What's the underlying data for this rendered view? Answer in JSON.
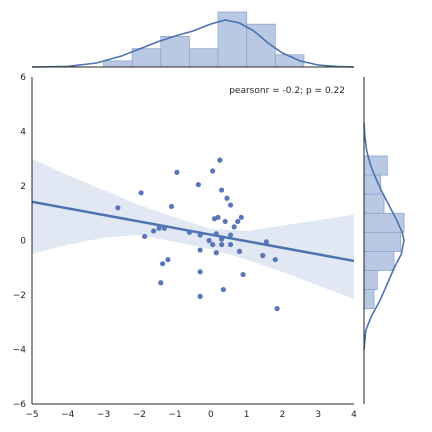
{
  "chart_data": {
    "type": "scatter",
    "title": "",
    "xlabel": "",
    "ylabel": "",
    "xlim": [
      -5,
      4
    ],
    "ylim": [
      -6,
      6
    ],
    "xticks": [
      -5,
      -4,
      -3,
      -2,
      -1,
      0,
      1,
      2,
      3,
      4
    ],
    "yticks": [
      -6,
      -4,
      -2,
      0,
      2,
      4,
      6
    ],
    "grid": false,
    "annotation": "pearsonr = -0.2; p = 0.22",
    "colors": {
      "points": "#5976b8",
      "line": "#4c72b0",
      "band": "#c8d3e9",
      "hist": "#a9bbdc",
      "hist_edge": "#8fa6d0",
      "spine": "#262626"
    },
    "points": [
      [
        -2.6,
        1.2
      ],
      [
        -1.95,
        1.75
      ],
      [
        -1.85,
        0.15
      ],
      [
        -1.6,
        0.35
      ],
      [
        -1.45,
        0.45
      ],
      [
        -1.3,
        0.45
      ],
      [
        -1.1,
        1.25
      ],
      [
        -0.95,
        2.5
      ],
      [
        -1.35,
        -0.85
      ],
      [
        -1.2,
        -0.7
      ],
      [
        -1.4,
        -1.55
      ],
      [
        -0.6,
        0.3
      ],
      [
        -0.35,
        2.05
      ],
      [
        -0.3,
        0.2
      ],
      [
        -0.3,
        -0.35
      ],
      [
        -0.3,
        -1.15
      ],
      [
        -0.3,
        -2.05
      ],
      [
        0.05,
        -0.15
      ],
      [
        0.05,
        2.55
      ],
      [
        0.1,
        0.8
      ],
      [
        0.15,
        -0.45
      ],
      [
        0.15,
        0.25
      ],
      [
        0.25,
        2.95
      ],
      [
        0.3,
        1.85
      ],
      [
        0.3,
        0.05
      ],
      [
        0.3,
        -0.15
      ],
      [
        0.35,
        -1.8
      ],
      [
        0.4,
        0.7
      ],
      [
        0.45,
        1.55
      ],
      [
        0.55,
        1.3
      ],
      [
        0.55,
        0.2
      ],
      [
        0.55,
        -0.15
      ],
      [
        0.65,
        0.5
      ],
      [
        0.75,
        0.7
      ],
      [
        0.8,
        -0.4
      ],
      [
        0.85,
        0.85
      ],
      [
        0.9,
        -1.25
      ],
      [
        1.45,
        -0.55
      ],
      [
        1.55,
        -0.05
      ],
      [
        1.8,
        -0.7
      ],
      [
        1.85,
        -2.5
      ],
      [
        0.2,
        0.85
      ],
      [
        -0.05,
        0.0
      ]
    ],
    "regression": {
      "x_range": [
        -5,
        4
      ],
      "y_at_xmin": 1.42,
      "y_at_xmax": -0.75,
      "ci_upper": [
        [
          -5,
          3.0
        ],
        [
          -4,
          2.4
        ],
        [
          -3,
          1.85
        ],
        [
          -2,
          1.3
        ],
        [
          -1,
          0.85
        ],
        [
          0,
          0.42
        ],
        [
          1,
          0.35
        ],
        [
          2,
          0.55
        ],
        [
          3,
          0.75
        ],
        [
          4,
          0.95
        ]
      ],
      "ci_lower": [
        [
          -5,
          -0.5
        ],
        [
          -4,
          -0.15
        ],
        [
          -3,
          0.1
        ],
        [
          -2,
          0.2
        ],
        [
          -1,
          -0.05
        ],
        [
          0,
          -0.32
        ],
        [
          1,
          -0.7
        ],
        [
          2,
          -1.15
        ],
        [
          3,
          -1.65
        ],
        [
          4,
          -2.15
        ]
      ]
    },
    "x_marginal": {
      "bin_edges": [
        -3.0,
        -2.2,
        -1.4,
        -0.6,
        0.2,
        1.0,
        1.8,
        2.6
      ],
      "counts": [
        1,
        3,
        5,
        3,
        9,
        7,
        2
      ],
      "kde_x": [
        -5,
        -4,
        -3.2,
        -2.5,
        -2.0,
        -1.5,
        -1.0,
        -0.5,
        0.0,
        0.4,
        0.8,
        1.2,
        1.6,
        2.0,
        2.5,
        3.0,
        3.5,
        4
      ],
      "kde_y": [
        0.0,
        0.003,
        0.02,
        0.055,
        0.09,
        0.125,
        0.155,
        0.18,
        0.215,
        0.235,
        0.22,
        0.18,
        0.12,
        0.07,
        0.03,
        0.01,
        0.003,
        0.0
      ]
    },
    "y_marginal": {
      "bin_edges": [
        -2.5,
        -1.8,
        -1.1,
        -0.4,
        0.3,
        1.0,
        1.7,
        2.4,
        3.1
      ],
      "counts": [
        3,
        4,
        9,
        11,
        12,
        6,
        5,
        7
      ],
      "kde_y": [
        -4.0,
        -3.3,
        -2.8,
        -2.2,
        -1.6,
        -1.0,
        -0.5,
        0.0,
        0.3,
        0.8,
        1.3,
        1.8,
        2.3,
        2.8,
        3.3,
        3.8,
        4.3
      ],
      "kde_x": [
        0.0,
        0.01,
        0.04,
        0.09,
        0.13,
        0.17,
        0.21,
        0.225,
        0.215,
        0.18,
        0.14,
        0.1,
        0.065,
        0.035,
        0.015,
        0.005,
        0.0
      ]
    }
  }
}
